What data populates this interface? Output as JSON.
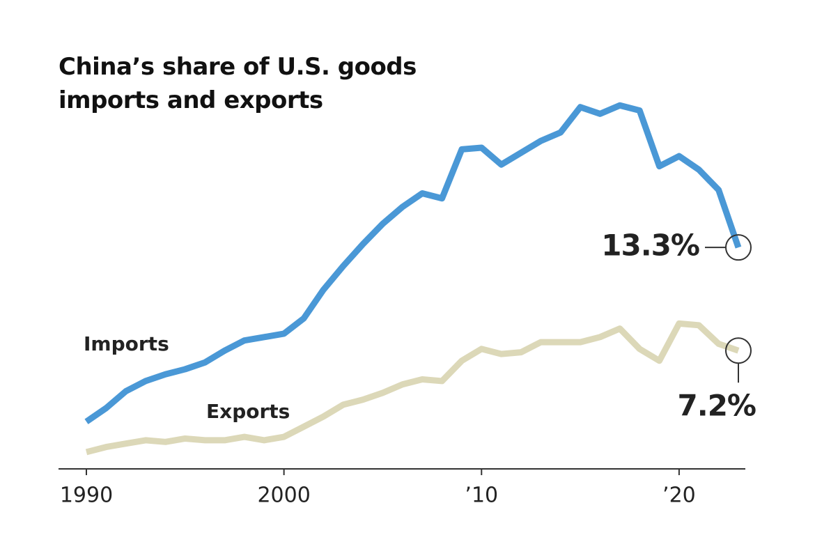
{
  "chart_data": {
    "type": "line",
    "title": "China’s share of U.S. goods imports and exports",
    "x": [
      1990,
      1991,
      1992,
      1993,
      1994,
      1995,
      1996,
      1997,
      1998,
      1999,
      2000,
      2001,
      2002,
      2003,
      2004,
      2005,
      2006,
      2007,
      2008,
      2009,
      2010,
      2011,
      2012,
      2013,
      2014,
      2015,
      2016,
      2017,
      2018,
      2019,
      2020,
      2021,
      2022,
      2023
    ],
    "series": [
      {
        "name": "Imports",
        "color": "#4a98d6",
        "values": [
          3.0,
          3.8,
          4.8,
          5.4,
          5.8,
          6.1,
          6.5,
          7.2,
          7.8,
          8.0,
          8.2,
          9.1,
          10.8,
          12.2,
          13.5,
          14.7,
          15.7,
          16.5,
          16.2,
          19.1,
          19.2,
          18.2,
          18.9,
          19.6,
          20.1,
          21.6,
          21.2,
          21.7,
          21.4,
          18.1,
          18.7,
          17.9,
          16.7,
          13.3
        ],
        "value_labels": [
          null,
          null,
          null,
          null,
          null,
          null,
          null,
          null,
          null,
          null,
          null,
          null,
          null,
          null,
          null,
          null,
          null,
          null,
          null,
          null,
          null,
          null,
          null,
          null,
          null,
          null,
          null,
          null,
          null,
          null,
          null,
          null,
          null,
          "13.3%"
        ]
      },
      {
        "name": "Exports",
        "color": "#dcd8b8",
        "values": [
          1.2,
          1.5,
          1.7,
          1.9,
          1.8,
          2.0,
          1.9,
          1.9,
          2.1,
          1.9,
          2.1,
          2.7,
          3.3,
          4.0,
          4.3,
          4.7,
          5.2,
          5.5,
          5.4,
          6.6,
          7.3,
          7.0,
          7.1,
          7.7,
          7.7,
          7.7,
          8.0,
          8.5,
          7.3,
          6.6,
          8.8,
          8.7,
          7.6,
          7.2
        ],
        "value_labels": [
          null,
          null,
          null,
          null,
          null,
          null,
          null,
          null,
          null,
          null,
          null,
          null,
          null,
          null,
          null,
          null,
          null,
          null,
          null,
          null,
          null,
          null,
          null,
          null,
          null,
          null,
          null,
          null,
          null,
          null,
          null,
          null,
          null,
          "7.2%"
        ]
      }
    ],
    "xlim": [
      1990,
      2023
    ],
    "xticks": [
      1990,
      2000,
      {
        "value": 2010,
        "label": "’10"
      },
      {
        "value": 2020,
        "label": "’20"
      }
    ],
    "ylim": [
      0,
      22
    ]
  }
}
